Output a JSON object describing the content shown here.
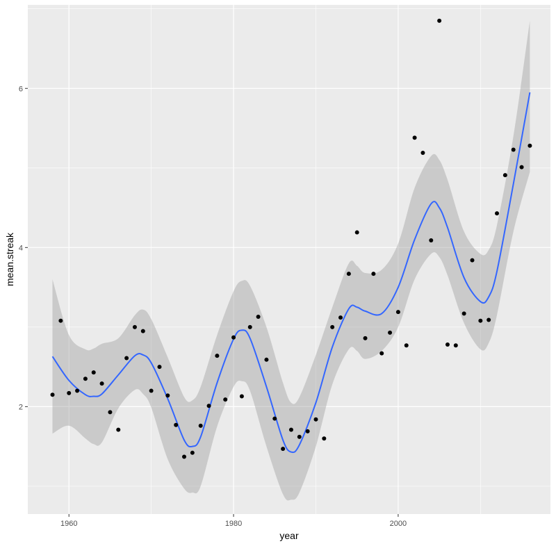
{
  "chart_data": {
    "type": "scatter",
    "xlabel": "year",
    "ylabel": "mean.streak",
    "xlim": [
      1955,
      2018.5
    ],
    "ylim": [
      0.65,
      7.05
    ],
    "x_ticks": [
      1960,
      1980,
      2000
    ],
    "y_ticks": [
      2,
      4,
      6
    ],
    "grid": true,
    "colors": {
      "panel": "#ebebeb",
      "grid_major": "#ffffff",
      "points": "#000000",
      "smooth_line": "#3366ff",
      "ribbon": "#999999"
    },
    "points": [
      {
        "x": 1958,
        "y": 2.15
      },
      {
        "x": 1959,
        "y": 3.08
      },
      {
        "x": 1960,
        "y": 2.17
      },
      {
        "x": 1961,
        "y": 2.2
      },
      {
        "x": 1962,
        "y": 2.35
      },
      {
        "x": 1963,
        "y": 2.43
      },
      {
        "x": 1964,
        "y": 2.29
      },
      {
        "x": 1965,
        "y": 1.93
      },
      {
        "x": 1966,
        "y": 1.71
      },
      {
        "x": 1967,
        "y": 2.61
      },
      {
        "x": 1968,
        "y": 3.0
      },
      {
        "x": 1969,
        "y": 2.95
      },
      {
        "x": 1970,
        "y": 2.2
      },
      {
        "x": 1971,
        "y": 2.5
      },
      {
        "x": 1972,
        "y": 2.14
      },
      {
        "x": 1973,
        "y": 1.77
      },
      {
        "x": 1974,
        "y": 1.37
      },
      {
        "x": 1975,
        "y": 1.42
      },
      {
        "x": 1976,
        "y": 1.76
      },
      {
        "x": 1977,
        "y": 2.01
      },
      {
        "x": 1978,
        "y": 2.64
      },
      {
        "x": 1979,
        "y": 2.09
      },
      {
        "x": 1980,
        "y": 2.87
      },
      {
        "x": 1981,
        "y": 2.13
      },
      {
        "x": 1982,
        "y": 3.0
      },
      {
        "x": 1983,
        "y": 3.13
      },
      {
        "x": 1984,
        "y": 2.59
      },
      {
        "x": 1985,
        "y": 1.85
      },
      {
        "x": 1986,
        "y": 1.47
      },
      {
        "x": 1987,
        "y": 1.71
      },
      {
        "x": 1988,
        "y": 1.62
      },
      {
        "x": 1989,
        "y": 1.69
      },
      {
        "x": 1990,
        "y": 1.84
      },
      {
        "x": 1991,
        "y": 1.6
      },
      {
        "x": 1992,
        "y": 3.0
      },
      {
        "x": 1993,
        "y": 3.12
      },
      {
        "x": 1994,
        "y": 3.67
      },
      {
        "x": 1995,
        "y": 4.19
      },
      {
        "x": 1996,
        "y": 2.86
      },
      {
        "x": 1997,
        "y": 3.67
      },
      {
        "x": 1998,
        "y": 2.67
      },
      {
        "x": 1999,
        "y": 2.93
      },
      {
        "x": 2000,
        "y": 3.19
      },
      {
        "x": 2001,
        "y": 2.77
      },
      {
        "x": 2002,
        "y": 5.38
      },
      {
        "x": 2003,
        "y": 5.19
      },
      {
        "x": 2004,
        "y": 4.09
      },
      {
        "x": 2005,
        "y": 6.85
      },
      {
        "x": 2006,
        "y": 2.78
      },
      {
        "x": 2007,
        "y": 2.77
      },
      {
        "x": 2008,
        "y": 3.17
      },
      {
        "x": 2009,
        "y": 3.84
      },
      {
        "x": 2010,
        "y": 3.08
      },
      {
        "x": 2011,
        "y": 3.09
      },
      {
        "x": 2012,
        "y": 4.43
      },
      {
        "x": 2013,
        "y": 4.91
      },
      {
        "x": 2014,
        "y": 5.23
      },
      {
        "x": 2015,
        "y": 5.01
      },
      {
        "x": 2016,
        "y": 5.28
      }
    ],
    "smooth": [
      {
        "x": 1958,
        "y": 2.63,
        "lo": 1.66,
        "hi": 3.6
      },
      {
        "x": 1960,
        "y": 2.33,
        "lo": 1.76,
        "hi": 2.9
      },
      {
        "x": 1962,
        "y": 2.15,
        "lo": 1.6,
        "hi": 2.72
      },
      {
        "x": 1963,
        "y": 2.13,
        "lo": 1.53,
        "hi": 2.73
      },
      {
        "x": 1964,
        "y": 2.16,
        "lo": 1.55,
        "hi": 2.79
      },
      {
        "x": 1966,
        "y": 2.4,
        "lo": 1.98,
        "hi": 2.86
      },
      {
        "x": 1968,
        "y": 2.64,
        "lo": 2.21,
        "hi": 3.15
      },
      {
        "x": 1969,
        "y": 2.65,
        "lo": 2.16,
        "hi": 3.22
      },
      {
        "x": 1970,
        "y": 2.55,
        "lo": 1.99,
        "hi": 3.1
      },
      {
        "x": 1972,
        "y": 2.1,
        "lo": 1.34,
        "hi": 2.62
      },
      {
        "x": 1974,
        "y": 1.58,
        "lo": 0.97,
        "hi": 2.12
      },
      {
        "x": 1975,
        "y": 1.5,
        "lo": 0.92,
        "hi": 2.08
      },
      {
        "x": 1976,
        "y": 1.62,
        "lo": 1.0,
        "hi": 2.25
      },
      {
        "x": 1978,
        "y": 2.3,
        "lo": 1.75,
        "hi": 2.9
      },
      {
        "x": 1980,
        "y": 2.85,
        "lo": 2.25,
        "hi": 3.45
      },
      {
        "x": 1981,
        "y": 2.96,
        "lo": 2.32,
        "hi": 3.58
      },
      {
        "x": 1982,
        "y": 2.86,
        "lo": 2.2,
        "hi": 3.52
      },
      {
        "x": 1984,
        "y": 2.25,
        "lo": 1.5,
        "hi": 3.0
      },
      {
        "x": 1986,
        "y": 1.58,
        "lo": 0.9,
        "hi": 2.3
      },
      {
        "x": 1987,
        "y": 1.43,
        "lo": 0.83,
        "hi": 2.05
      },
      {
        "x": 1988,
        "y": 1.52,
        "lo": 0.92,
        "hi": 2.12
      },
      {
        "x": 1990,
        "y": 2.05,
        "lo": 1.5,
        "hi": 2.65
      },
      {
        "x": 1992,
        "y": 2.75,
        "lo": 2.28,
        "hi": 3.25
      },
      {
        "x": 1994,
        "y": 3.23,
        "lo": 2.72,
        "hi": 3.8
      },
      {
        "x": 1995,
        "y": 3.25,
        "lo": 2.7,
        "hi": 3.77
      },
      {
        "x": 1996,
        "y": 3.2,
        "lo": 2.6,
        "hi": 3.68
      },
      {
        "x": 1998,
        "y": 3.17,
        "lo": 2.7,
        "hi": 3.72
      },
      {
        "x": 2000,
        "y": 3.5,
        "lo": 3.0,
        "hi": 4.05
      },
      {
        "x": 2002,
        "y": 4.1,
        "lo": 3.6,
        "hi": 4.75
      },
      {
        "x": 2004,
        "y": 4.55,
        "lo": 3.92,
        "hi": 5.15
      },
      {
        "x": 2005,
        "y": 4.5,
        "lo": 3.88,
        "hi": 5.1
      },
      {
        "x": 2006,
        "y": 4.25,
        "lo": 3.65,
        "hi": 4.85
      },
      {
        "x": 2008,
        "y": 3.62,
        "lo": 3.05,
        "hi": 4.2
      },
      {
        "x": 2010,
        "y": 3.32,
        "lo": 2.72,
        "hi": 3.92
      },
      {
        "x": 2011,
        "y": 3.38,
        "lo": 2.8,
        "hi": 3.97
      },
      {
        "x": 2012,
        "y": 3.7,
        "lo": 3.15,
        "hi": 4.28
      },
      {
        "x": 2014,
        "y": 4.8,
        "lo": 4.2,
        "hi": 5.4
      },
      {
        "x": 2016,
        "y": 5.95,
        "lo": 4.95,
        "hi": 6.85
      }
    ]
  }
}
